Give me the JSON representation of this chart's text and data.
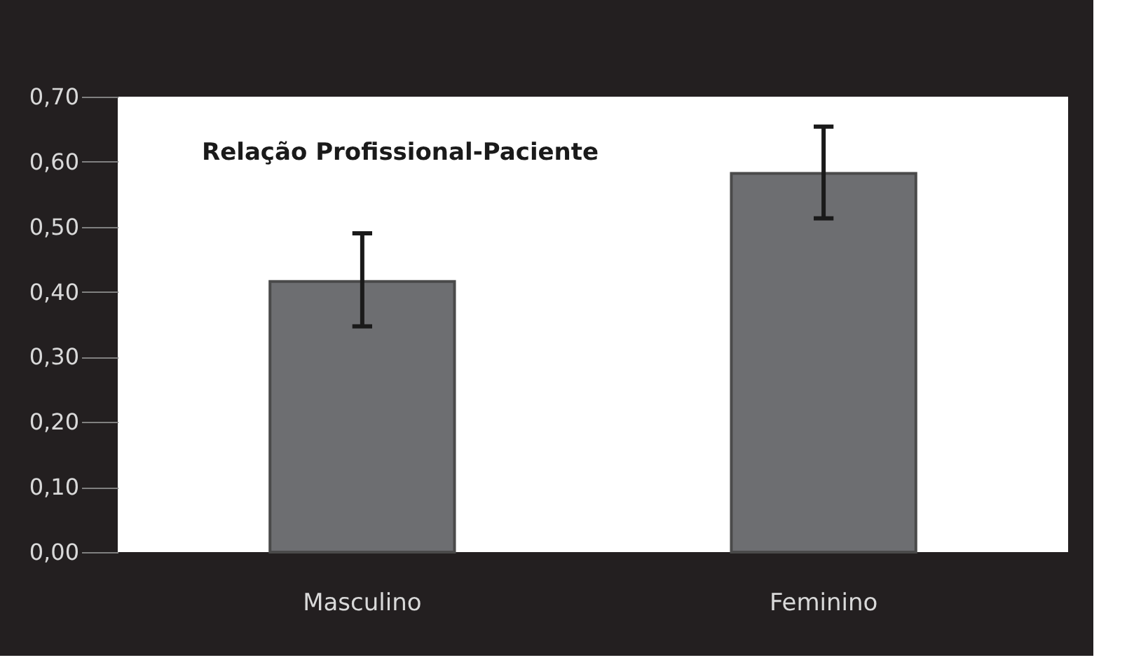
{
  "chart_data": {
    "type": "bar",
    "title": "Relação Profissional-Paciente",
    "categories": [
      "Masculino",
      "Feminino"
    ],
    "values": [
      0.416,
      0.582
    ],
    "errors": [
      [
        0.347,
        0.49
      ],
      [
        0.513,
        0.654
      ]
    ],
    "color": "#6d6e71",
    "ylim": [
      0,
      0.7
    ],
    "yticks": [
      {
        "value": 0,
        "label": "0,00"
      },
      {
        "value": 0.1,
        "label": "0,10"
      },
      {
        "value": 0.2,
        "label": "0,20"
      },
      {
        "value": 0.3,
        "label": "0,30"
      },
      {
        "value": 0.4,
        "label": "0,40"
      },
      {
        "value": 0.5,
        "label": "0,50"
      },
      {
        "value": 0.6,
        "label": "0,60"
      },
      {
        "value": 0.7,
        "label": "0,70"
      }
    ],
    "grid": false
  }
}
